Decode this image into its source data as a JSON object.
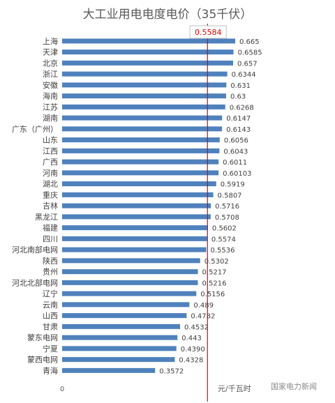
{
  "chart_data": {
    "type": "bar",
    "orientation": "horizontal",
    "title": "大工业用电电度电价（35千伏）",
    "unit_label": "元/千瓦时",
    "xlim": [
      0,
      0.665
    ],
    "axis_zero_label": "0",
    "grid": false,
    "legend": "none",
    "bar_color": "#4f81bd",
    "reference_line": {
      "value": 0.5584,
      "label": "0.5584",
      "color": "#e00000"
    },
    "categories": [
      "上海",
      "天津",
      "北京",
      "浙江",
      "安徽",
      "海南",
      "江苏",
      "湖南",
      "广东（广州）",
      "山东",
      "江西",
      "广西",
      "河南",
      "湖北",
      "重庆",
      "吉林",
      "黑龙江",
      "福建",
      "四川",
      "河北南部电网",
      "陕西",
      "贵州",
      "河北北部电网",
      "辽宁",
      "云南",
      "山西",
      "甘肃",
      "蒙东电网",
      "宁夏",
      "蒙西电网",
      "青海"
    ],
    "values": [
      0.665,
      0.6585,
      0.657,
      0.6344,
      0.631,
      0.63,
      0.6268,
      0.6147,
      0.6143,
      0.6056,
      0.6043,
      0.6011,
      0.60103,
      0.5919,
      0.5807,
      0.5716,
      0.5708,
      0.5602,
      0.5574,
      0.5536,
      0.5302,
      0.5217,
      0.5216,
      0.5156,
      0.489,
      0.4782,
      0.4532,
      0.443,
      0.439,
      0.4328,
      0.3572
    ],
    "value_labels": [
      "0.665",
      "0.6585",
      "0.657",
      "0.6344",
      "0.631",
      "0.63",
      "0.6268",
      "0.6147",
      "0.6143",
      "0.6056",
      "0.6043",
      "0.6011",
      "0.60103",
      "0.5919",
      "0.5807",
      "0.5716",
      "0.5708",
      "0.5602",
      "0.5574",
      "0.5536",
      "0.5302",
      "0.5217",
      "0.5216",
      "0.5156",
      "0.489",
      "0.4782",
      "0.4532",
      "0.443",
      "0.4390",
      "0.4328",
      "0.3572"
    ]
  },
  "watermark": "国家电力新闻"
}
